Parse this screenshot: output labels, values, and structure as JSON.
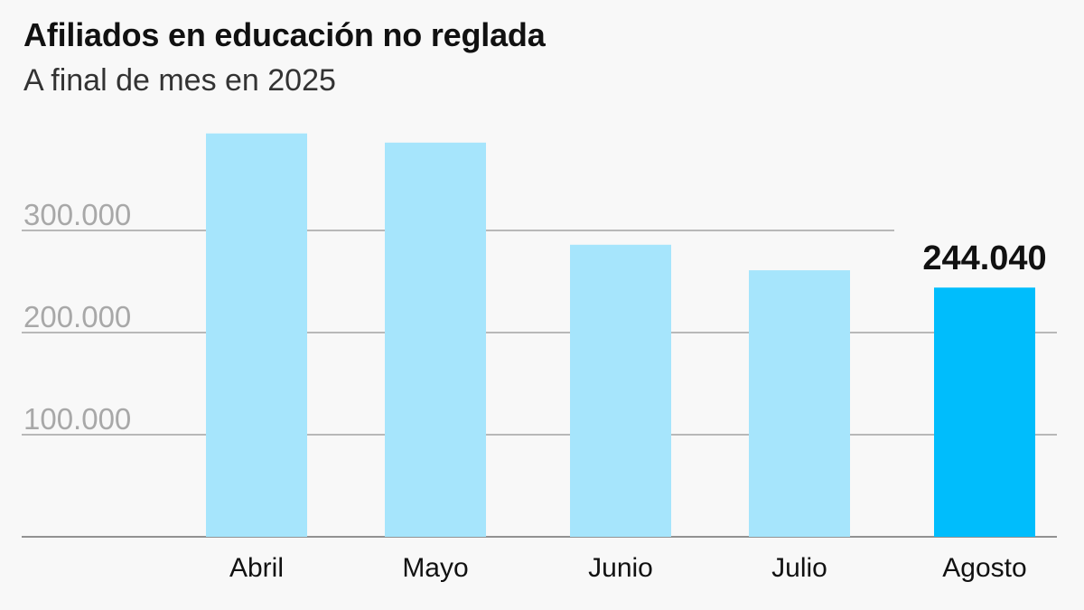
{
  "chart_data": {
    "type": "bar",
    "title": "Afiliados en educación no reglada",
    "subtitle": "A final de mes en 2025",
    "categories": [
      "Abril",
      "Mayo",
      "Junio",
      "Julio",
      "Agosto"
    ],
    "values": [
      395000,
      386000,
      286000,
      261000,
      244040
    ],
    "highlight_index": 4,
    "highlight_label": "244.040",
    "ylim": [
      0,
      400000
    ],
    "yticks": [
      100000,
      200000,
      300000
    ],
    "ytick_labels": [
      "100.000",
      "200.000",
      "300.000"
    ],
    "grid": true,
    "colors": {
      "bar": "#a6e5fc",
      "highlight": "#00bdfc",
      "grid": "#777777",
      "axis": "#555555"
    }
  }
}
